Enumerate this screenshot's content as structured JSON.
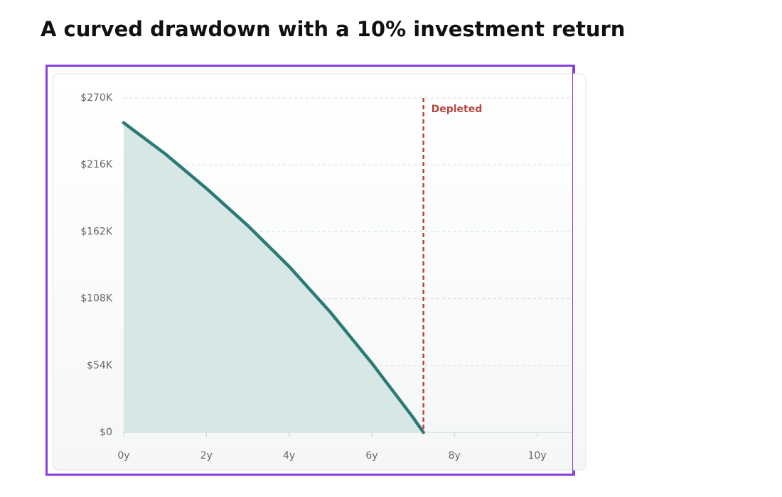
{
  "chart_data": {
    "type": "area",
    "title": "A curved drawdown with a 10% investment return",
    "x": [
      0,
      1,
      2,
      3,
      4,
      5,
      6,
      7,
      7.25
    ],
    "series": [
      {
        "color": "#2b7a76",
        "fill": "#d6e7e5",
        "values": [
          250000,
          225000,
          197000,
          167000,
          134000,
          97000,
          56000,
          12000,
          0
        ]
      }
    ],
    "xlim": [
      0,
      10.85
    ],
    "ylim": [
      0,
      270000
    ],
    "xticks": [
      {
        "value": 0,
        "label": "0y"
      },
      {
        "value": 2,
        "label": "2y"
      },
      {
        "value": 4,
        "label": "4y"
      },
      {
        "value": 6,
        "label": "6y"
      },
      {
        "value": 8,
        "label": "8y"
      },
      {
        "value": 10,
        "label": "10y"
      }
    ],
    "yticks": [
      {
        "value": 0,
        "label": "$0"
      },
      {
        "value": 54000,
        "label": "$54K"
      },
      {
        "value": 108000,
        "label": "$108K"
      },
      {
        "value": 162000,
        "label": "$162K"
      },
      {
        "value": 216000,
        "label": "$216K"
      },
      {
        "value": 270000,
        "label": "$270K"
      }
    ],
    "grid": true,
    "annotations": [
      {
        "text": "Depleted",
        "x": 7.25,
        "color": "#b5463f"
      }
    ]
  }
}
